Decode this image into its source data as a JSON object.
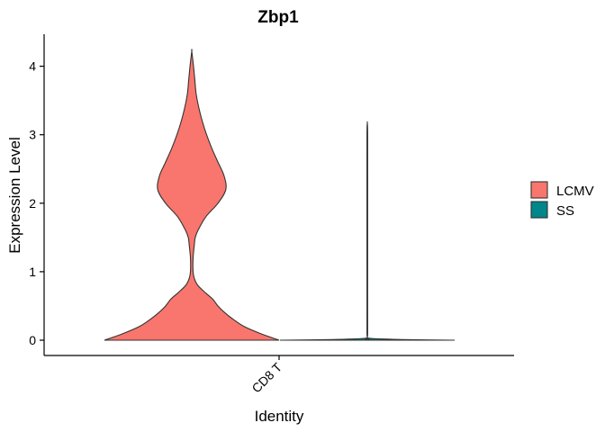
{
  "chart_data": {
    "type": "violin",
    "title": "Zbp1",
    "xlabel": "Identity",
    "ylabel": "Expression Level",
    "categories": [
      "CD8 T"
    ],
    "ylim": [
      -0.2,
      4.45
    ],
    "yticks": [
      0,
      1,
      2,
      3,
      4
    ],
    "grid": false,
    "legend_position": "right",
    "series": [
      {
        "name": "LCMV",
        "color": "#F8766D",
        "max": 4.22,
        "density_profile": [
          [
            0.0,
            1.0
          ],
          [
            0.1,
            0.78
          ],
          [
            0.2,
            0.6
          ],
          [
            0.3,
            0.48
          ],
          [
            0.4,
            0.38
          ],
          [
            0.5,
            0.3
          ],
          [
            0.6,
            0.24
          ],
          [
            0.7,
            0.15
          ],
          [
            0.8,
            0.07
          ],
          [
            0.9,
            0.03
          ],
          [
            1.0,
            0.015
          ],
          [
            1.2,
            0.015
          ],
          [
            1.4,
            0.03
          ],
          [
            1.5,
            0.04
          ],
          [
            1.6,
            0.07
          ],
          [
            1.8,
            0.16
          ],
          [
            2.0,
            0.3
          ],
          [
            2.2,
            0.39
          ],
          [
            2.4,
            0.37
          ],
          [
            2.6,
            0.3
          ],
          [
            2.8,
            0.23
          ],
          [
            3.0,
            0.17
          ],
          [
            3.2,
            0.12
          ],
          [
            3.4,
            0.08
          ],
          [
            3.6,
            0.05
          ],
          [
            3.8,
            0.035
          ],
          [
            4.0,
            0.02
          ],
          [
            4.22,
            0.0
          ]
        ]
      },
      {
        "name": "SS",
        "color": "#00868B",
        "max": 3.17,
        "density_profile": [
          [
            0.0,
            1.0
          ],
          [
            0.01,
            0.4
          ],
          [
            0.03,
            0.01
          ],
          [
            0.1,
            0.004
          ],
          [
            1.0,
            0.004
          ],
          [
            2.0,
            0.004
          ],
          [
            3.0,
            0.004
          ],
          [
            3.17,
            0.0
          ]
        ]
      }
    ]
  }
}
